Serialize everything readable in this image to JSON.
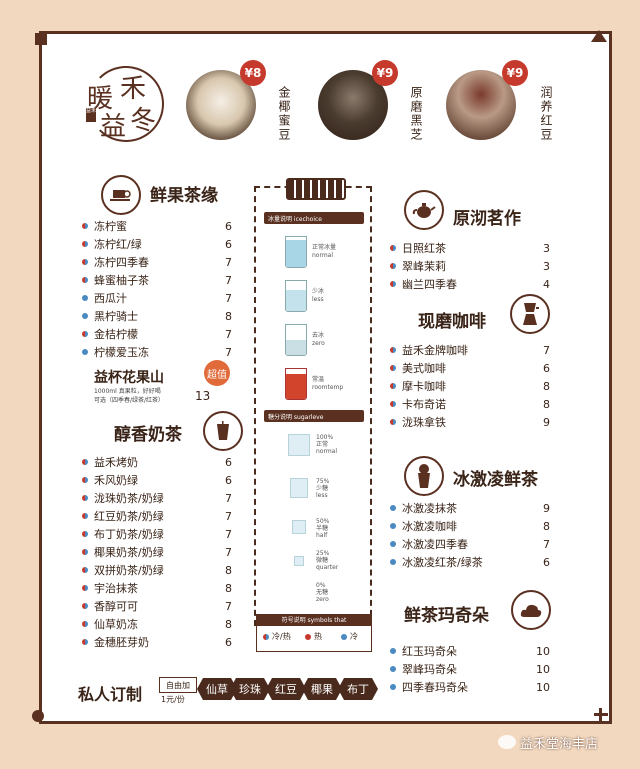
{
  "logo": {
    "line1": "禾",
    "line2": "暖",
    "line3": "益",
    "line4": "冬",
    "seal": "益禾"
  },
  "featured": [
    {
      "price": "¥8",
      "name": "金椰蜜豆"
    },
    {
      "price": "¥9",
      "name": "原磨黑芝"
    },
    {
      "price": "¥9",
      "name": "润养红豆"
    }
  ],
  "sections": {
    "fresh_tea": {
      "title": "鲜果茶缘",
      "items": [
        {
          "name": "冻柠蜜",
          "price": "6",
          "dot": "mix"
        },
        {
          "name": "冻柠红/绿",
          "price": "6",
          "dot": "mix"
        },
        {
          "name": "冻柠四季春",
          "price": "7",
          "dot": "mix"
        },
        {
          "name": "蜂蜜柚子茶",
          "price": "7",
          "dot": "mix"
        },
        {
          "name": "西瓜汁",
          "price": "7",
          "dot": "blue"
        },
        {
          "name": "黑柠骑士",
          "price": "8",
          "dot": "blue"
        },
        {
          "name": "金桔柠檬",
          "price": "7",
          "dot": "mix"
        },
        {
          "name": "柠檬爱玉冻",
          "price": "7",
          "dot": "blue"
        }
      ]
    },
    "fruit_mountain": {
      "title": "益杯花果山",
      "badge": "超值",
      "desc1": "1000ml 真果粒，好好喝",
      "desc2": "可选（四季春/绿茶/红茶）",
      "price": "13"
    },
    "milk_tea": {
      "title": "醇香奶茶",
      "items": [
        {
          "name": "益禾烤奶",
          "price": "6",
          "dot": "mix"
        },
        {
          "name": "禾风奶绿",
          "price": "6",
          "dot": "mix"
        },
        {
          "name": "泷珠奶茶/奶绿",
          "price": "7",
          "dot": "mix"
        },
        {
          "name": "红豆奶茶/奶绿",
          "price": "7",
          "dot": "mix"
        },
        {
          "name": "布丁奶茶/奶绿",
          "price": "7",
          "dot": "mix"
        },
        {
          "name": "椰果奶茶/奶绿",
          "price": "7",
          "dot": "mix"
        },
        {
          "name": "双拼奶茶/奶绿",
          "price": "8",
          "dot": "mix"
        },
        {
          "name": "宇治抹茶",
          "price": "8",
          "dot": "mix"
        },
        {
          "name": "香醇可可",
          "price": "7",
          "dot": "mix"
        },
        {
          "name": "仙草奶冻",
          "price": "8",
          "dot": "mix"
        },
        {
          "name": "金穗胚芽奶",
          "price": "6",
          "dot": "mix"
        }
      ]
    },
    "brew_tea": {
      "title": "原沏茗作",
      "items": [
        {
          "name": "日照红茶",
          "price": "3",
          "dot": "mix"
        },
        {
          "name": "翠峰茉莉",
          "price": "3",
          "dot": "mix"
        },
        {
          "name": "幽兰四季春",
          "price": "4",
          "dot": "mix"
        }
      ]
    },
    "coffee": {
      "title": "现磨咖啡",
      "items": [
        {
          "name": "益禾金牌咖啡",
          "price": "7",
          "dot": "mix"
        },
        {
          "name": "美式咖啡",
          "price": "6",
          "dot": "mix"
        },
        {
          "name": "摩卡咖啡",
          "price": "8",
          "dot": "mix"
        },
        {
          "name": "卡布奇诺",
          "price": "8",
          "dot": "mix"
        },
        {
          "name": "泷珠拿铁",
          "price": "9",
          "dot": "mix"
        }
      ]
    },
    "ice_cream": {
      "title": "冰激凌鲜茶",
      "items": [
        {
          "name": "冰激凌抹茶",
          "price": "9",
          "dot": "blue"
        },
        {
          "name": "冰激凌咖啡",
          "price": "8",
          "dot": "blue"
        },
        {
          "name": "冰激凌四季春",
          "price": "7",
          "dot": "blue"
        },
        {
          "name": "冰激凌红茶/绿茶",
          "price": "6",
          "dot": "blue"
        }
      ]
    },
    "macchiato": {
      "title": "鲜茶玛奇朵",
      "items": [
        {
          "name": "红玉玛奇朵",
          "price": "10",
          "dot": "blue"
        },
        {
          "name": "翠峰玛奇朵",
          "price": "10",
          "dot": "blue"
        },
        {
          "name": "四季春玛奇朵",
          "price": "10",
          "dot": "blue"
        }
      ]
    }
  },
  "ice_panel": {
    "header": "冰量说明 icechoice",
    "levels": [
      {
        "cn": "正常冰量",
        "en": "normal"
      },
      {
        "cn": "少冰",
        "en": "less"
      },
      {
        "cn": "去冰",
        "en": "zero"
      },
      {
        "cn": "常温",
        "en": "roomtemp"
      }
    ],
    "sugar_header": "糖分说明 sugarleve",
    "sugar": [
      {
        "pct": "100%",
        "cn": "正常",
        "en": "normal"
      },
      {
        "pct": "75%",
        "cn": "少糖",
        "en": "less"
      },
      {
        "pct": "50%",
        "cn": "半糖",
        "en": "half"
      },
      {
        "pct": "25%",
        "cn": "微糖",
        "en": "quarter"
      },
      {
        "pct": "0%",
        "cn": "无糖",
        "en": "zero"
      }
    ],
    "symbols_header": "符号说明 symbols that",
    "sym_mix": "冷/热",
    "sym_red": "热",
    "sym_blue": "冷"
  },
  "custom": {
    "title": "私人订制",
    "box": "自由加",
    "price": "1元/份",
    "toppings": [
      "仙草",
      "珍珠",
      "红豆",
      "椰果",
      "布丁"
    ]
  },
  "watermark": "益禾堂海丰店",
  "colors": {
    "bg": "#f1d8bf",
    "brown": "#5a3020",
    "red": "#c53a2c",
    "blue": "#4a8ac0"
  }
}
